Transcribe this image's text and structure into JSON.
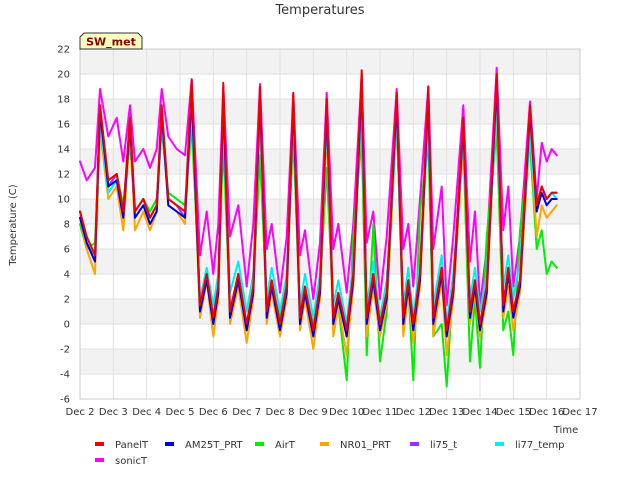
{
  "chart_data": {
    "type": "line",
    "title": "Temperatures",
    "xlabel": "Time",
    "ylabel": "Temperature (C)",
    "badge": "SW_met",
    "xlim": [
      2.0,
      17.0
    ],
    "ylim": [
      -6,
      22
    ],
    "x_ticks": [
      {
        "v": 2,
        "label": "Dec 2"
      },
      {
        "v": 3,
        "label": "Dec 3"
      },
      {
        "v": 4,
        "label": "Dec 4"
      },
      {
        "v": 5,
        "label": "Dec 5"
      },
      {
        "v": 6,
        "label": "Dec 6"
      },
      {
        "v": 7,
        "label": "Dec 7"
      },
      {
        "v": 8,
        "label": "Dec 8"
      },
      {
        "v": 9,
        "label": "Dec 9"
      },
      {
        "v": 10,
        "label": "Dec 10"
      },
      {
        "v": 11,
        "label": "Dec 11"
      },
      {
        "v": 12,
        "label": "Dec 12"
      },
      {
        "v": 13,
        "label": "Dec 13"
      },
      {
        "v": 14,
        "label": "Dec 14"
      },
      {
        "v": 15,
        "label": "Dec 15"
      },
      {
        "v": 16,
        "label": "Dec 16"
      },
      {
        "v": 17,
        "label": "Dec 17"
      }
    ],
    "y_ticks": [
      {
        "v": -6,
        "label": "-6"
      },
      {
        "v": -4,
        "label": "-4"
      },
      {
        "v": -2,
        "label": "-2"
      },
      {
        "v": 0,
        "label": "0"
      },
      {
        "v": 2,
        "label": "2"
      },
      {
        "v": 4,
        "label": "4"
      },
      {
        "v": 6,
        "label": "6"
      },
      {
        "v": 8,
        "label": "8"
      },
      {
        "v": 10,
        "label": "10"
      },
      {
        "v": 12,
        "label": "12"
      },
      {
        "v": 14,
        "label": "14"
      },
      {
        "v": 16,
        "label": "16"
      },
      {
        "v": 18,
        "label": "18"
      },
      {
        "v": 20,
        "label": "20"
      },
      {
        "v": 22,
        "label": "22"
      }
    ],
    "series": [
      {
        "name": "sonicT",
        "color": "#ff00ff",
        "x": [
          2.0,
          2.2,
          2.45,
          2.6,
          2.85,
          3.1,
          3.3,
          3.5,
          3.65,
          3.9,
          4.1,
          4.3,
          4.45,
          4.65,
          4.9,
          5.15,
          5.35,
          5.6,
          5.8,
          6.0,
          6.15,
          6.3,
          6.5,
          6.75,
          7.0,
          7.2,
          7.4,
          7.6,
          7.75,
          8.0,
          8.2,
          8.4,
          8.6,
          8.75,
          9.0,
          9.2,
          9.4,
          9.6,
          9.75,
          10.0,
          10.2,
          10.45,
          10.6,
          10.8,
          11.0,
          11.2,
          11.5,
          11.7,
          11.85,
          12.0,
          12.2,
          12.45,
          12.6,
          12.85,
          13.0,
          13.2,
          13.5,
          13.7,
          13.85,
          14.0,
          14.2,
          14.5,
          14.7,
          14.85,
          15.0,
          15.2,
          15.5,
          15.7,
          15.85,
          16.0,
          16.15,
          16.3
        ],
        "y": [
          13.0,
          11.5,
          12.5,
          18.8,
          15.0,
          16.5,
          13.0,
          17.5,
          13.0,
          14.0,
          12.5,
          14.0,
          18.8,
          15.0,
          14.0,
          13.5,
          19.6,
          5.5,
          9.0,
          4.0,
          8.0,
          19.0,
          7.0,
          9.5,
          3.0,
          8.0,
          19.2,
          6.0,
          8.0,
          2.5,
          7.0,
          18.4,
          5.5,
          7.5,
          2.0,
          6.5,
          18.5,
          6.0,
          8.0,
          2.5,
          8.0,
          20.0,
          6.5,
          9.0,
          2.0,
          7.0,
          18.8,
          6.0,
          8.0,
          3.0,
          10.0,
          19.0,
          6.0,
          11.0,
          1.5,
          7.0,
          17.5,
          5.0,
          9.0,
          1.5,
          6.0,
          20.5,
          7.5,
          11.0,
          3.0,
          7.0,
          17.8,
          10.0,
          14.5,
          13.0,
          14.0,
          13.5
        ]
      },
      {
        "name": "AirT",
        "color": "#00ee00",
        "x": [
          2.0,
          2.2,
          2.45,
          2.6,
          2.85,
          3.1,
          3.3,
          3.5,
          3.65,
          3.9,
          4.1,
          4.3,
          4.45,
          4.65,
          4.9,
          5.15,
          5.35,
          5.6,
          5.8,
          6.0,
          6.15,
          6.3,
          6.5,
          6.75,
          7.0,
          7.2,
          7.4,
          7.6,
          7.75,
          8.0,
          8.2,
          8.4,
          8.6,
          8.75,
          9.0,
          9.2,
          9.4,
          9.6,
          9.75,
          10.0,
          10.2,
          10.45,
          10.6,
          10.8,
          11.0,
          11.2,
          11.5,
          11.7,
          11.85,
          12.0,
          12.2,
          12.45,
          12.6,
          12.85,
          13.0,
          13.2,
          13.5,
          13.7,
          13.85,
          14.0,
          14.2,
          14.5,
          14.7,
          14.85,
          15.0,
          15.2,
          15.5,
          15.7,
          15.85,
          16.0,
          16.15,
          16.3
        ],
        "y": [
          8.0,
          6.0,
          6.5,
          15.5,
          11.0,
          12.0,
          9.5,
          14.5,
          9.0,
          10.0,
          9.0,
          10.0,
          15.5,
          10.5,
          10.0,
          9.5,
          15.8,
          2.0,
          4.0,
          0.5,
          3.0,
          14.5,
          1.0,
          4.0,
          -0.5,
          3.0,
          13.5,
          1.5,
          3.0,
          0.5,
          3.5,
          15.0,
          1.0,
          2.5,
          0.0,
          3.0,
          12.5,
          1.0,
          1.5,
          -4.5,
          7.0,
          15.0,
          -2.5,
          8.0,
          -3.0,
          1.0,
          16.5,
          0.5,
          3.0,
          -4.5,
          9.0,
          14.5,
          -1.0,
          0.0,
          -5.0,
          3.5,
          14.5,
          -3.0,
          2.0,
          -3.5,
          7.0,
          15.5,
          -0.5,
          1.0,
          -2.5,
          7.5,
          14.5,
          6.0,
          7.5,
          4.0,
          5.0,
          4.5
        ]
      },
      {
        "name": "NR01_PRT",
        "color": "#ffa500",
        "x": [
          2.0,
          2.2,
          2.45,
          2.6,
          2.85,
          3.1,
          3.3,
          3.5,
          3.65,
          3.9,
          4.1,
          4.3,
          4.45,
          4.65,
          4.9,
          5.15,
          5.35,
          5.6,
          5.8,
          6.0,
          6.15,
          6.3,
          6.5,
          6.75,
          7.0,
          7.2,
          7.4,
          7.6,
          7.75,
          8.0,
          8.2,
          8.4,
          8.6,
          8.75,
          9.0,
          9.2,
          9.4,
          9.6,
          9.75,
          10.0,
          10.2,
          10.45,
          10.6,
          10.8,
          11.0,
          11.2,
          11.5,
          11.7,
          11.85,
          12.0,
          12.2,
          12.45,
          12.6,
          12.85,
          13.0,
          13.2,
          13.5,
          13.7,
          13.85,
          14.0,
          14.2,
          14.5,
          14.7,
          14.85,
          15.0,
          15.2,
          15.5,
          15.7,
          15.85,
          16.0,
          16.15,
          16.3
        ],
        "y": [
          8.5,
          6.0,
          4.0,
          15.5,
          10.0,
          11.0,
          7.5,
          15.5,
          7.5,
          9.0,
          7.5,
          9.0,
          16.5,
          9.5,
          9.0,
          8.0,
          17.5,
          0.5,
          3.5,
          -1.0,
          2.0,
          17.0,
          0.0,
          3.0,
          -1.5,
          2.0,
          17.5,
          0.0,
          2.5,
          -1.0,
          2.0,
          17.0,
          -0.5,
          2.0,
          -2.0,
          2.0,
          16.0,
          -1.0,
          1.5,
          -2.5,
          3.0,
          18.5,
          -1.0,
          3.0,
          -1.0,
          1.5,
          17.0,
          -1.0,
          2.5,
          -1.5,
          3.0,
          17.0,
          -1.0,
          3.5,
          -2.5,
          2.0,
          14.5,
          0.0,
          2.5,
          -1.0,
          2.0,
          18.5,
          0.5,
          3.0,
          -0.5,
          2.5,
          15.5,
          7.0,
          9.5,
          8.5,
          9.0,
          9.5
        ]
      },
      {
        "name": "li77_temp",
        "color": "#00eeee",
        "x": [
          2.0,
          2.2,
          2.45,
          2.6,
          2.85,
          3.1,
          3.3,
          3.5,
          3.65,
          3.9,
          4.1,
          4.3,
          4.45,
          4.65,
          4.9,
          5.15,
          5.35,
          5.6,
          5.8,
          6.0,
          6.15,
          6.3,
          6.5,
          6.75,
          7.0,
          7.2,
          7.4,
          7.6,
          7.75,
          8.0,
          8.2,
          8.4,
          8.6,
          8.75,
          9.0,
          9.2,
          9.4,
          9.6,
          9.75,
          10.0,
          10.2,
          10.45,
          10.6,
          10.8,
          11.0,
          11.2,
          11.5,
          11.7,
          11.85,
          12.0,
          12.2,
          12.45,
          12.6,
          12.85,
          13.0,
          13.2,
          13.5,
          13.7,
          13.85,
          14.0,
          14.2,
          14.5,
          14.7,
          14.85,
          15.0,
          15.2,
          15.5,
          15.7,
          15.85,
          16.0,
          16.15,
          16.3
        ],
        "y": [
          9.0,
          6.5,
          5.5,
          16.0,
          10.5,
          11.5,
          9.0,
          16.0,
          9.0,
          10.0,
          8.5,
          9.5,
          16.0,
          10.0,
          9.5,
          9.0,
          17.0,
          2.0,
          4.5,
          1.5,
          4.0,
          16.5,
          2.5,
          5.0,
          1.0,
          4.0,
          16.5,
          2.0,
          4.5,
          1.0,
          4.0,
          16.5,
          1.5,
          4.0,
          0.5,
          4.0,
          16.0,
          1.5,
          3.5,
          0.0,
          5.0,
          17.0,
          1.5,
          5.0,
          0.5,
          3.5,
          16.0,
          1.5,
          4.5,
          0.5,
          5.0,
          16.0,
          1.5,
          5.5,
          0.0,
          4.0,
          15.0,
          2.0,
          4.5,
          1.0,
          4.0,
          17.0,
          3.0,
          5.5,
          2.0,
          5.0,
          15.0,
          9.0,
          11.0,
          10.0,
          10.5,
          10.0
        ]
      },
      {
        "name": "li75_t",
        "color": "#9b30ff",
        "x": [
          2.0,
          2.2,
          2.45,
          2.6,
          2.85,
          3.1,
          3.3,
          3.5,
          3.65,
          3.9,
          4.1,
          4.3,
          4.45,
          4.65,
          4.9,
          5.15,
          5.35,
          5.6,
          5.8,
          6.0,
          6.15,
          6.3,
          6.5,
          6.75,
          7.0,
          7.2,
          7.4,
          7.6,
          7.75,
          8.0,
          8.2,
          8.4,
          8.6,
          8.75,
          9.0,
          9.2,
          9.4,
          9.6,
          9.75,
          10.0,
          10.2,
          10.45,
          10.6,
          10.8,
          11.0,
          11.2,
          11.5,
          11.7,
          11.85,
          12.0,
          12.2,
          12.45,
          12.6,
          12.85,
          13.0,
          13.2,
          13.5,
          13.7,
          13.85,
          14.0,
          14.2,
          14.5,
          14.7,
          14.85,
          15.0,
          15.2,
          15.5,
          15.7,
          15.85,
          16.0,
          16.15,
          16.3
        ],
        "y": [
          9.0,
          6.5,
          5.0,
          17.5,
          11.0,
          12.0,
          9.0,
          16.5,
          9.0,
          10.0,
          8.5,
          9.5,
          17.0,
          10.0,
          9.5,
          8.5,
          18.5,
          1.5,
          4.0,
          0.5,
          3.0,
          18.0,
          1.0,
          4.0,
          -0.5,
          3.0,
          18.0,
          1.0,
          3.5,
          0.0,
          3.0,
          18.0,
          0.5,
          3.0,
          -0.5,
          3.0,
          17.5,
          0.5,
          2.5,
          -0.5,
          4.0,
          19.0,
          0.5,
          4.0,
          0.0,
          2.5,
          18.0,
          0.5,
          3.5,
          0.0,
          4.0,
          18.0,
          0.5,
          4.5,
          -0.5,
          3.0,
          16.5,
          1.0,
          3.5,
          0.0,
          3.0,
          19.5,
          1.5,
          4.5,
          1.0,
          3.5,
          17.0,
          9.5,
          11.0,
          10.0,
          10.5,
          10.5
        ]
      },
      {
        "name": "AM25T_PRT",
        "color": "#0000dd",
        "x": [
          2.0,
          2.2,
          2.45,
          2.6,
          2.85,
          3.1,
          3.3,
          3.5,
          3.65,
          3.9,
          4.1,
          4.3,
          4.45,
          4.65,
          4.9,
          5.15,
          5.35,
          5.6,
          5.8,
          6.0,
          6.15,
          6.3,
          6.5,
          6.75,
          7.0,
          7.2,
          7.4,
          7.6,
          7.75,
          8.0,
          8.2,
          8.4,
          8.6,
          8.75,
          9.0,
          9.2,
          9.4,
          9.6,
          9.75,
          10.0,
          10.2,
          10.45,
          10.6,
          10.8,
          11.0,
          11.2,
          11.5,
          11.7,
          11.85,
          12.0,
          12.2,
          12.45,
          12.6,
          12.85,
          13.0,
          13.2,
          13.5,
          13.7,
          13.85,
          14.0,
          14.2,
          14.5,
          14.7,
          14.85,
          15.0,
          15.2,
          15.5,
          15.7,
          15.85,
          16.0,
          16.15,
          16.3
        ],
        "y": [
          8.5,
          6.5,
          5.0,
          17.0,
          11.0,
          11.5,
          8.5,
          16.0,
          8.5,
          9.5,
          8.0,
          9.0,
          17.0,
          9.5,
          9.0,
          8.5,
          18.5,
          1.0,
          3.5,
          0.0,
          2.5,
          18.5,
          0.5,
          3.5,
          -0.5,
          2.5,
          18.5,
          0.5,
          3.0,
          -0.5,
          2.5,
          18.0,
          0.0,
          2.5,
          -1.0,
          2.5,
          17.5,
          0.0,
          2.0,
          -1.0,
          3.5,
          19.5,
          0.0,
          3.5,
          -0.5,
          2.0,
          18.0,
          0.0,
          3.0,
          -0.5,
          3.5,
          18.5,
          0.0,
          4.0,
          -1.0,
          2.5,
          16.0,
          0.5,
          3.0,
          -0.5,
          2.5,
          19.5,
          1.0,
          4.0,
          0.5,
          3.0,
          17.0,
          9.0,
          10.5,
          9.5,
          10.0,
          10.0
        ]
      },
      {
        "name": "PanelT",
        "color": "#ee0000",
        "x": [
          2.0,
          2.2,
          2.45,
          2.6,
          2.85,
          3.1,
          3.3,
          3.5,
          3.65,
          3.9,
          4.1,
          4.3,
          4.45,
          4.65,
          4.9,
          5.15,
          5.35,
          5.6,
          5.8,
          6.0,
          6.15,
          6.3,
          6.5,
          6.75,
          7.0,
          7.2,
          7.4,
          7.6,
          7.75,
          8.0,
          8.2,
          8.4,
          8.6,
          8.75,
          9.0,
          9.2,
          9.4,
          9.6,
          9.75,
          10.0,
          10.2,
          10.45,
          10.6,
          10.8,
          11.0,
          11.2,
          11.5,
          11.7,
          11.85,
          12.0,
          12.2,
          12.45,
          12.6,
          12.85,
          13.0,
          13.2,
          13.5,
          13.7,
          13.85,
          14.0,
          14.2,
          14.5,
          14.7,
          14.85,
          15.0,
          15.2,
          15.5,
          15.7,
          15.85,
          16.0,
          16.15,
          16.3
        ],
        "y": [
          9.0,
          7.0,
          5.5,
          17.5,
          11.5,
          12.0,
          9.0,
          16.5,
          9.0,
          10.0,
          8.5,
          9.5,
          17.5,
          10.0,
          9.5,
          9.0,
          19.5,
          1.5,
          4.0,
          0.5,
          3.0,
          19.3,
          1.0,
          4.0,
          0.0,
          3.0,
          19.0,
          1.0,
          3.5,
          0.0,
          3.0,
          18.5,
          0.5,
          3.0,
          -0.5,
          3.0,
          18.0,
          0.5,
          2.5,
          -0.5,
          4.0,
          20.3,
          0.5,
          4.0,
          0.0,
          2.5,
          18.5,
          0.5,
          3.5,
          0.0,
          4.0,
          19.0,
          0.5,
          4.5,
          -0.5,
          3.0,
          16.5,
          1.0,
          3.5,
          0.0,
          3.0,
          20.0,
          1.5,
          4.5,
          1.0,
          3.5,
          17.5,
          9.5,
          11.0,
          10.0,
          10.5,
          10.5
        ]
      }
    ],
    "legend": [
      {
        "name": "PanelT",
        "color": "#ee0000"
      },
      {
        "name": "AM25T_PRT",
        "color": "#0000dd"
      },
      {
        "name": "AirT",
        "color": "#00ee00"
      },
      {
        "name": "NR01_PRT",
        "color": "#ffa500"
      },
      {
        "name": "li75_t",
        "color": "#9b30ff"
      },
      {
        "name": "li77_temp",
        "color": "#00eeee"
      },
      {
        "name": "sonicT",
        "color": "#ff00ff"
      }
    ],
    "legend_placement": "bottom",
    "grid": true
  }
}
